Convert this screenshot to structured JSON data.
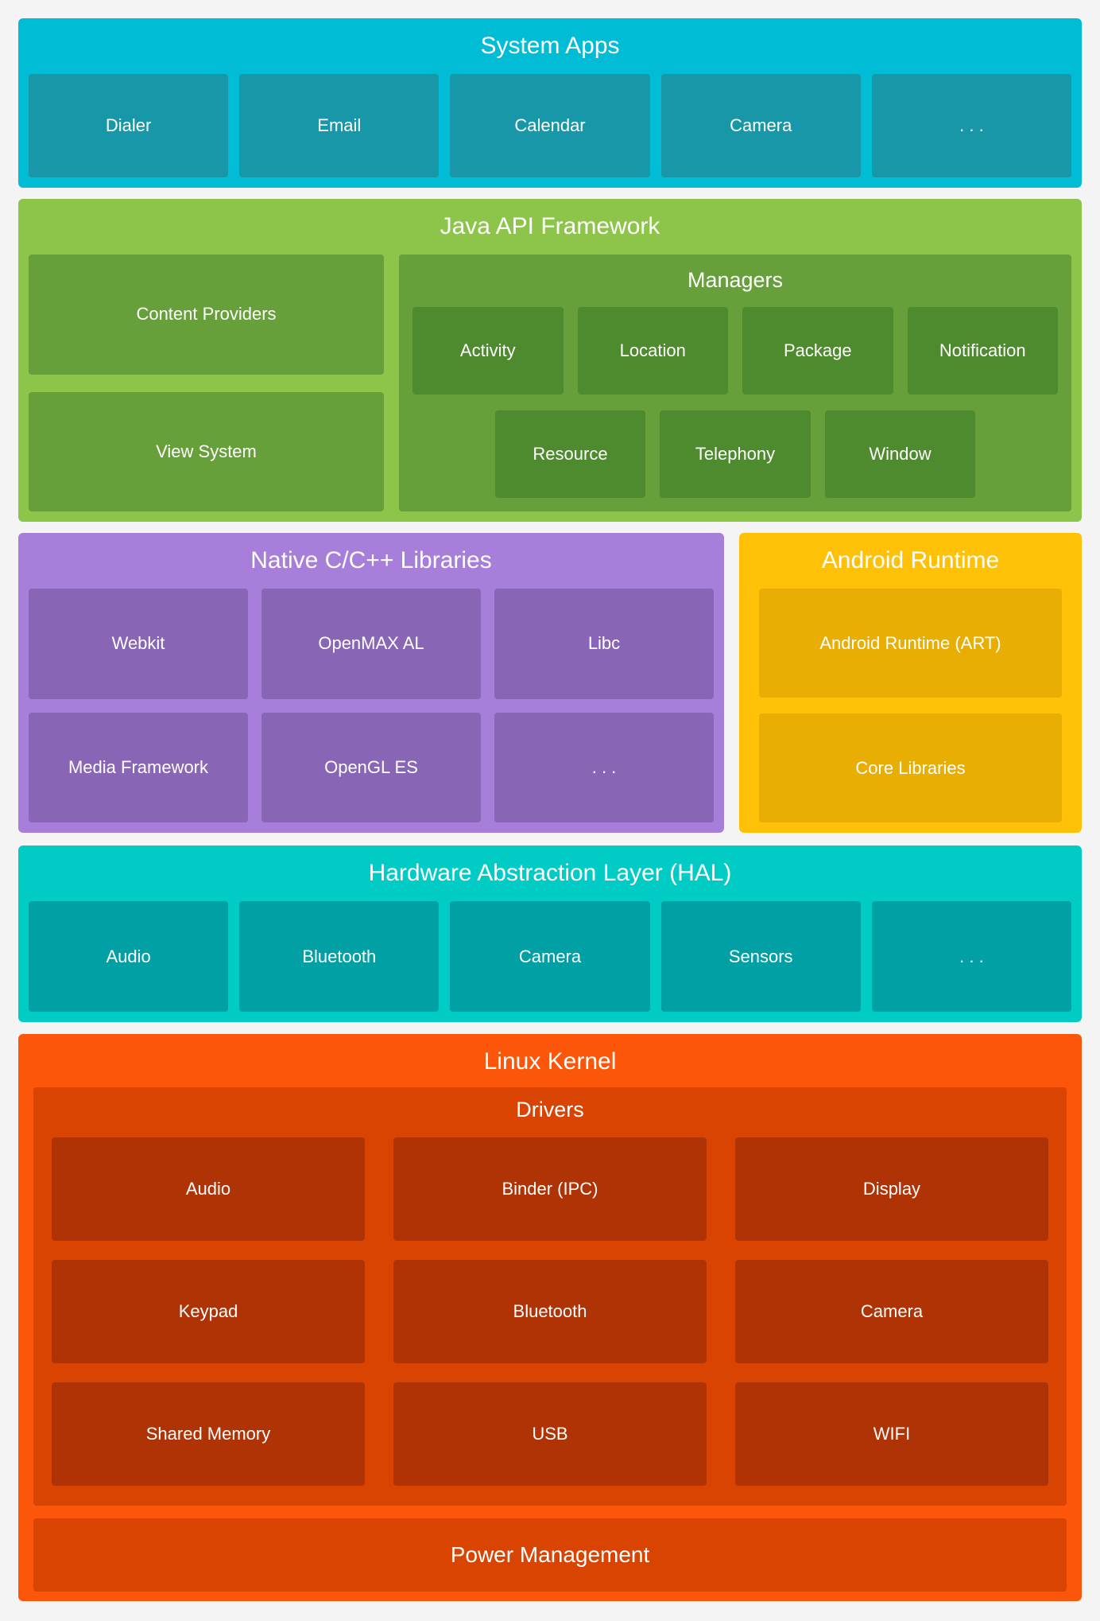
{
  "diagram": {
    "system_apps": {
      "title": "System Apps",
      "items": [
        "Dialer",
        "Email",
        "Calendar",
        "Camera",
        ". . ."
      ]
    },
    "java_api": {
      "title": "Java API Framework",
      "content_providers": "Content Providers",
      "view_system": "View System",
      "managers": {
        "title": "Managers",
        "row1": [
          "Activity",
          "Location",
          "Package",
          "Notification"
        ],
        "row2": [
          "Resource",
          "Telephony",
          "Window"
        ]
      }
    },
    "native_libs": {
      "title": "Native C/C++ Libraries",
      "items": [
        "Webkit",
        "OpenMAX AL",
        "Libc",
        "Media Framework",
        "OpenGL ES",
        ". . ."
      ]
    },
    "android_runtime": {
      "title": "Android Runtime",
      "items": [
        "Android Runtime (ART)",
        "Core Libraries"
      ]
    },
    "hal": {
      "title": "Hardware Abstraction Layer (HAL)",
      "items": [
        "Audio",
        "Bluetooth",
        "Camera",
        "Sensors",
        ". . ."
      ]
    },
    "linux_kernel": {
      "title": "Linux Kernel",
      "drivers": {
        "title": "Drivers",
        "items": [
          "Audio",
          "Binder (IPC)",
          "Display",
          "Keypad",
          "Bluetooth",
          "Camera",
          "Shared Memory",
          "USB",
          "WIFI"
        ]
      },
      "power_management": "Power Management"
    }
  },
  "colors": {
    "page_background": "#f4f4f4",
    "text": "#ffffff",
    "system_apps_layer": "#00bcd4",
    "system_apps_box": "#1797a8",
    "java_layer": "#8dc44a",
    "java_box": "#67a03a",
    "managers_panel": "#67a03a",
    "managers_box": "#4e8a2e",
    "native_layer": "#a87edb",
    "native_box": "#8966b5",
    "runtime_layer": "#ffc107",
    "runtime_box": "#e9ae03",
    "hal_layer": "#00cbc5",
    "hal_box": "#01a0a4",
    "kernel_layer": "#fc560b",
    "kernel_panel": "#d94403",
    "kernel_box": "#b03306"
  }
}
